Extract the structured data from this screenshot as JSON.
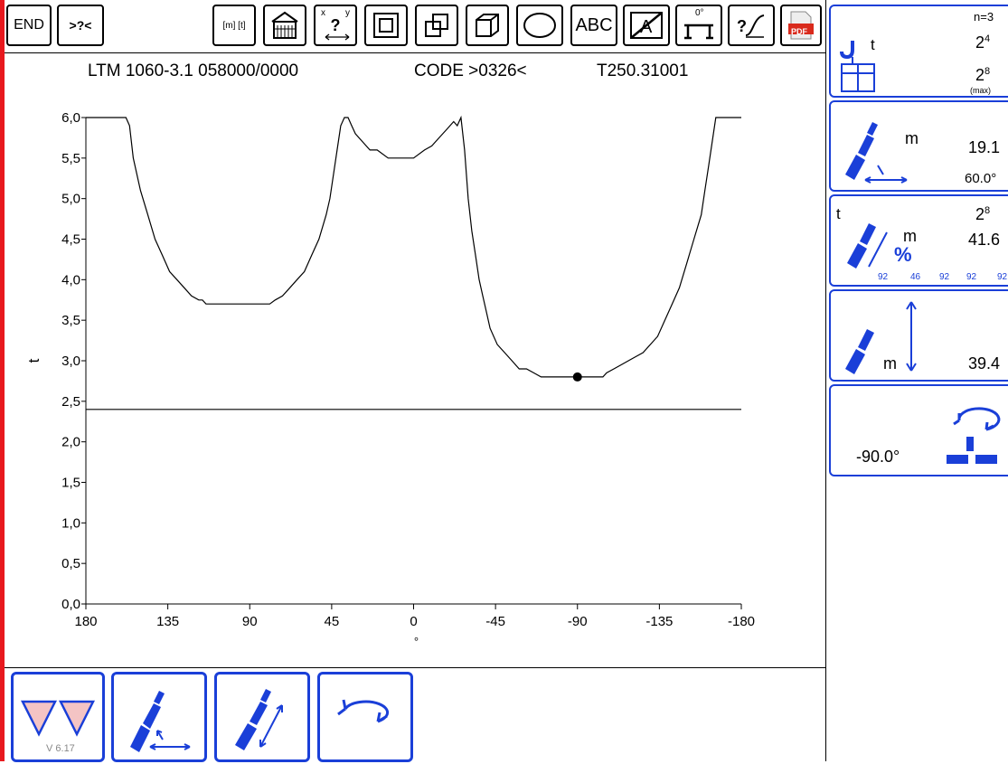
{
  "toolbar": {
    "end_label": "END",
    "help_label": ">?<",
    "units_label": "[m] [t]",
    "text_label": "ABC",
    "angle_label": "0°",
    "pdf_label": "PDF",
    "xy_x": "x",
    "xy_y": "y",
    "xy_q": "?"
  },
  "header": {
    "model": "LTM 1060-3.1  058000/0000",
    "code": "CODE >0326<",
    "table": "T250.31001"
  },
  "chart_data": {
    "type": "line",
    "xlabel": "°",
    "ylabel": "t",
    "xlim": [
      180,
      -180
    ],
    "ylim": [
      0,
      6
    ],
    "xticks": [
      180,
      135,
      90,
      45,
      0,
      -45,
      -90,
      -135,
      -180
    ],
    "xtick_labels": [
      "180",
      "135",
      "90",
      "45",
      "0",
      "-45",
      "-90",
      "-135",
      "-180"
    ],
    "yticks": [
      0,
      0.5,
      1,
      1.5,
      2,
      2.5,
      3,
      3.5,
      4,
      4.5,
      5,
      5.5,
      6
    ],
    "ytick_labels": [
      "0,0",
      "0,5",
      "1,0",
      "1,5",
      "2,0",
      "2,5",
      "3,0",
      "3,5",
      "4,0",
      "4,5",
      "5,0",
      "5,5",
      "6,0"
    ],
    "reference_line": 2.4,
    "marker": {
      "x": -90,
      "y": 2.8
    },
    "series": [
      {
        "x": [
          180,
          158,
          156,
          154,
          150,
          146,
          142,
          138,
          134,
          130,
          126,
          122,
          118,
          116,
          114,
          112,
          110,
          108,
          90,
          79,
          76,
          72,
          68,
          64,
          60,
          56,
          52,
          48,
          46,
          44,
          42,
          40,
          38,
          36,
          34,
          32,
          28,
          24,
          20,
          14,
          8,
          0,
          -6,
          -10,
          -14,
          -18,
          -22,
          -24,
          -26,
          -28,
          -30,
          -32,
          -34,
          -36,
          -38,
          -40,
          -42,
          -46,
          -50,
          -54,
          -58,
          -62,
          -66,
          -70,
          -74,
          -78,
          -104,
          -106,
          -110,
          -114,
          -118,
          -122,
          -126,
          -130,
          -134,
          -138,
          -142,
          -146,
          -150,
          -154,
          -158,
          -160,
          -162,
          -164,
          -166,
          -168,
          -180
        ],
        "values": [
          6.0,
          6.0,
          5.9,
          5.5,
          5.1,
          4.8,
          4.5,
          4.3,
          4.1,
          4.0,
          3.9,
          3.8,
          3.75,
          3.75,
          3.7,
          3.7,
          3.7,
          3.7,
          3.7,
          3.7,
          3.75,
          3.8,
          3.9,
          4.0,
          4.1,
          4.3,
          4.5,
          4.8,
          5.0,
          5.3,
          5.6,
          5.9,
          6.0,
          6.0,
          5.9,
          5.8,
          5.7,
          5.6,
          5.6,
          5.5,
          5.5,
          5.5,
          5.6,
          5.65,
          5.75,
          5.85,
          5.95,
          5.9,
          6.0,
          5.6,
          5.0,
          4.6,
          4.3,
          4.0,
          3.8,
          3.6,
          3.4,
          3.2,
          3.1,
          3.0,
          2.9,
          2.9,
          2.85,
          2.8,
          2.8,
          2.8,
          2.8,
          2.85,
          2.9,
          2.95,
          3.0,
          3.05,
          3.1,
          3.2,
          3.3,
          3.5,
          3.7,
          3.9,
          4.2,
          4.5,
          4.8,
          5.1,
          5.4,
          5.7,
          6.0,
          6.0,
          6.0
        ]
      }
    ]
  },
  "bottom": {
    "version": "V 6.17"
  },
  "side": {
    "p1": {
      "n": "n=3",
      "unit": "t",
      "val1": "2",
      "exp1": "4",
      "val2": "2",
      "exp2": "8",
      "max": "(max)"
    },
    "p2": {
      "unit": "m",
      "value": "19.1",
      "angle": "60.0°"
    },
    "p3": {
      "unit_t": "t",
      "val": "2",
      "exp": "8",
      "unit_m": "m",
      "value": "41.6",
      "pct": "%",
      "pcts": [
        "92",
        "46",
        "92",
        "92",
        "92"
      ]
    },
    "p4": {
      "unit": "m",
      "value": "39.4"
    },
    "p5": {
      "value": "-90.0°"
    }
  }
}
